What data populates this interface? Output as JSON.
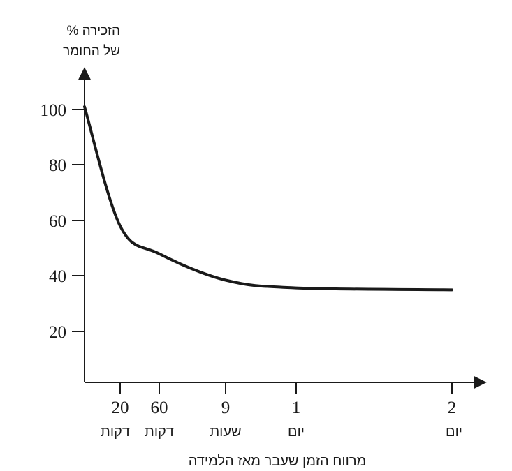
{
  "chart_data": {
    "type": "line",
    "ylabel_line1": "% הזכירה",
    "ylabel_line2": "של החומר",
    "xlabel": "מרווח הזמן שעבר מאז הלמידה",
    "y_ticks": [
      20,
      40,
      60,
      80,
      100
    ],
    "ylim": [
      0,
      100
    ],
    "x_ticks": [
      {
        "value": "20",
        "unit": "דקות"
      },
      {
        "value": "60",
        "unit": "דקות"
      },
      {
        "value": "9",
        "unit": "שעות"
      },
      {
        "value": "1",
        "unit": "יום"
      },
      {
        "value": "2",
        "unit": "יום"
      }
    ],
    "series": [
      {
        "points": [
          {
            "t": "0",
            "y": 101
          },
          {
            "t": "20 דקות",
            "y": 58
          },
          {
            "t": "60 דקות",
            "y": 48
          },
          {
            "t": "9 שעות",
            "y": 38.5
          },
          {
            "t": "1 יום",
            "y": 35.7
          },
          {
            "t": "2 יום",
            "y": 35
          }
        ]
      }
    ],
    "grid": false,
    "legend": "none"
  }
}
